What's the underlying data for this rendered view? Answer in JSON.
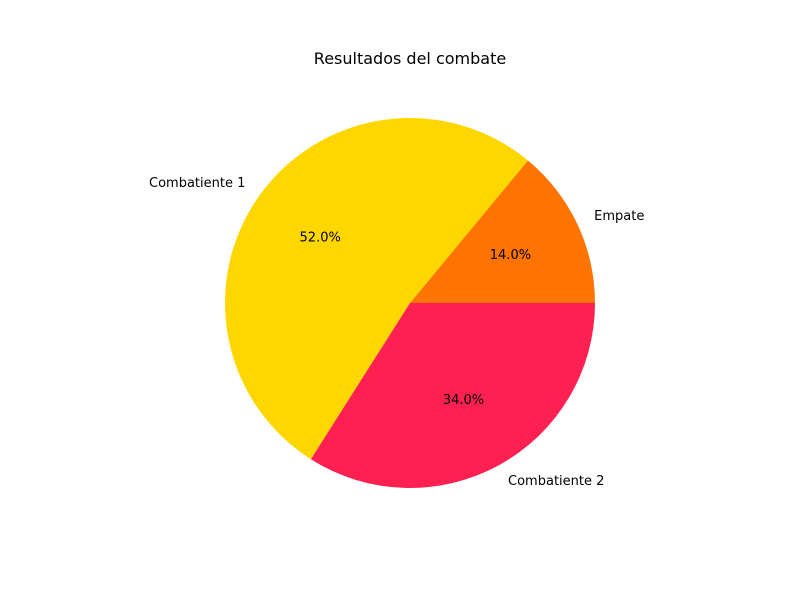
{
  "chart_data": {
    "type": "pie",
    "title": "Resultados del combate",
    "labels": [
      "Empate",
      "Combatiente 1",
      "Combatiente 2"
    ],
    "values": [
      14.0,
      52.0,
      34.0
    ],
    "percent_labels": [
      "14.0%",
      "52.0%",
      "34.0%"
    ],
    "colors": [
      "#FF7300",
      "#FFD700",
      "#FF2052"
    ],
    "start_angle_deg": 0,
    "direction": "counterclockwise",
    "legend": "none"
  }
}
